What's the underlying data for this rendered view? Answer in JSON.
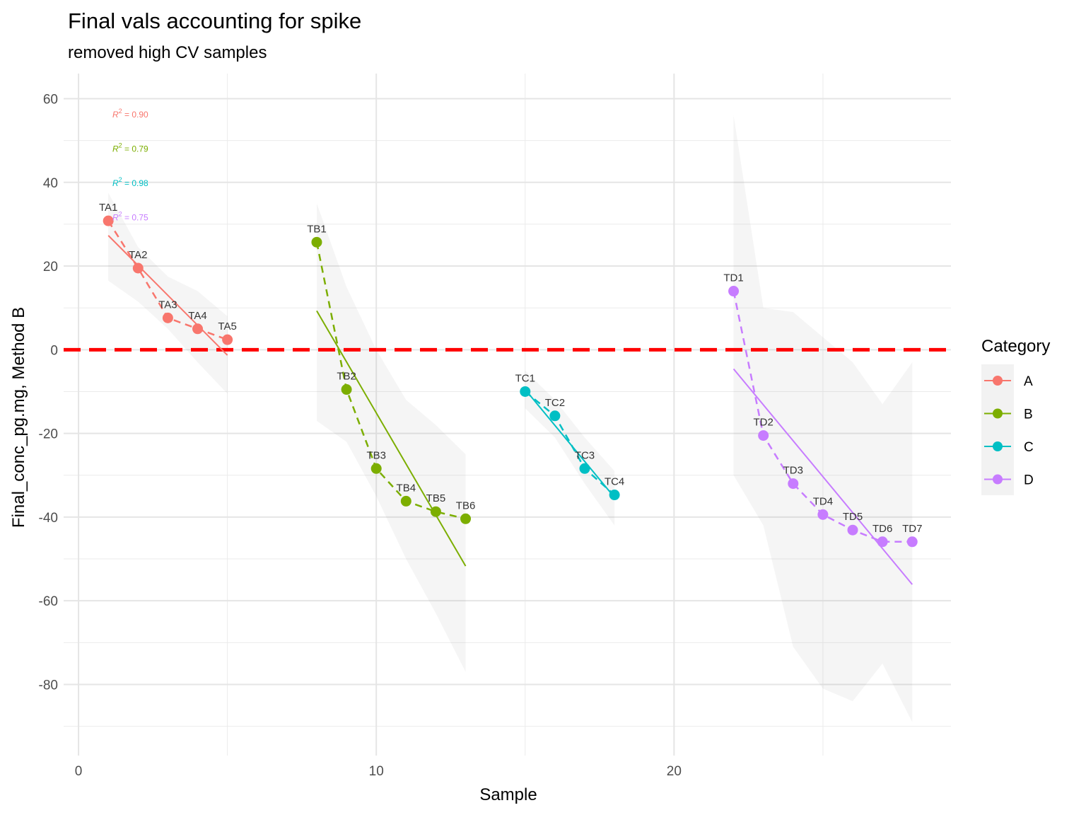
{
  "chart_data": {
    "type": "scatter",
    "title": "Final vals accounting for spike",
    "subtitle": "removed high CV samples",
    "xlabel": "Sample",
    "ylabel": "Final_conc_pg.mg, Method B",
    "xlim": [
      -0.5,
      29.3
    ],
    "ylim": [
      -97,
      66
    ],
    "x_ticks": [
      0,
      10,
      20
    ],
    "y_ticks": [
      60,
      40,
      20,
      0,
      -20,
      -40,
      -60,
      -80
    ],
    "grid": true,
    "hline": {
      "y": 0,
      "color": "#ff0000",
      "style": "dashed"
    },
    "legend": {
      "title": "Category",
      "position": "right"
    },
    "series": [
      {
        "name": "A",
        "color": "#f8766d",
        "points": [
          {
            "x": 1,
            "y": 30.8,
            "label": "TA1"
          },
          {
            "x": 2,
            "y": 19.5,
            "label": "TA2"
          },
          {
            "x": 3,
            "y": 7.6,
            "label": "TA3"
          },
          {
            "x": 4,
            "y": 5.0,
            "label": "TA4"
          },
          {
            "x": 5,
            "y": 2.4,
            "label": "TA5"
          }
        ],
        "fit": {
          "x": [
            1,
            5
          ],
          "y": [
            27.3,
            -1.3
          ]
        },
        "band": {
          "x": [
            1,
            2,
            3,
            4,
            5
          ],
          "upper": [
            37.5,
            24.5,
            17.5,
            14,
            8
          ],
          "lower": [
            16.5,
            11.5,
            5,
            -3,
            -10.5
          ]
        },
        "r2": "= 0.90"
      },
      {
        "name": "B",
        "color": "#7cae00",
        "points": [
          {
            "x": 8,
            "y": 25.7,
            "label": "TB1"
          },
          {
            "x": 9,
            "y": -9.5,
            "label": "TB2"
          },
          {
            "x": 10,
            "y": -28.4,
            "label": "TB3"
          },
          {
            "x": 11,
            "y": -36.2,
            "label": "TB4"
          },
          {
            "x": 12,
            "y": -38.7,
            "label": "TB5"
          },
          {
            "x": 13,
            "y": -40.4,
            "label": "TB6"
          }
        ],
        "fit": {
          "x": [
            8,
            13
          ],
          "y": [
            9.3,
            -51.7
          ]
        },
        "band": {
          "x": [
            8,
            9,
            10,
            11,
            12,
            13
          ],
          "upper": [
            35,
            15,
            0,
            -12,
            -18,
            -25
          ],
          "lower": [
            -17,
            -22,
            -35,
            -50,
            -63,
            -77
          ]
        },
        "r2": "= 0.79"
      },
      {
        "name": "C",
        "color": "#00bfc4",
        "points": [
          {
            "x": 15,
            "y": -10.0,
            "label": "TC1"
          },
          {
            "x": 16,
            "y": -15.8,
            "label": "TC2"
          },
          {
            "x": 17,
            "y": -28.4,
            "label": "TC3"
          },
          {
            "x": 18,
            "y": -34.7,
            "label": "TC4"
          }
        ],
        "fit": {
          "x": [
            15,
            18
          ],
          "y": [
            -9.5,
            -35.3
          ]
        },
        "band": {
          "x": [
            15,
            16,
            17,
            18
          ],
          "upper": [
            -5,
            -12,
            -21,
            -29
          ],
          "lower": [
            -14,
            -21,
            -32,
            -42
          ]
        },
        "r2": "= 0.98"
      },
      {
        "name": "D",
        "color": "#c77cff",
        "points": [
          {
            "x": 22,
            "y": 14.0,
            "label": "TD1"
          },
          {
            "x": 23,
            "y": -20.5,
            "label": "TD2"
          },
          {
            "x": 24,
            "y": -32.0,
            "label": "TD3"
          },
          {
            "x": 25,
            "y": -39.4,
            "label": "TD4"
          },
          {
            "x": 26,
            "y": -43.1,
            "label": "TD5"
          },
          {
            "x": 27,
            "y": -45.9,
            "label": "TD6"
          },
          {
            "x": 28,
            "y": -45.9,
            "label": "TD7"
          }
        ],
        "fit": {
          "x": [
            22,
            28
          ],
          "y": [
            -4.6,
            -56.1
          ]
        },
        "band": {
          "x": [
            22,
            23,
            24,
            25,
            26,
            27,
            28
          ],
          "upper": [
            56,
            10,
            9,
            3,
            -3,
            -13,
            -3
          ],
          "lower": [
            -30,
            -42,
            -71,
            -81,
            -84,
            -75,
            -89
          ]
        },
        "r2": "= 0.75"
      }
    ]
  }
}
